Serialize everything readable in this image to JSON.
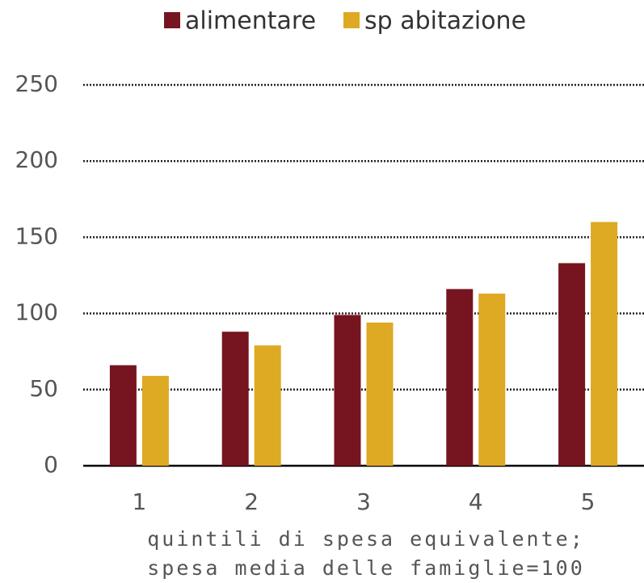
{
  "chart_data": {
    "type": "bar",
    "categories": [
      "1",
      "2",
      "3",
      "4",
      "5"
    ],
    "series": [
      {
        "name": "alimentare",
        "color": "#76151f",
        "values": [
          66,
          88,
          99,
          116,
          133
        ]
      },
      {
        "name": "sp abitazione",
        "color": "#dea923",
        "values": [
          59,
          79,
          94,
          113,
          160
        ]
      }
    ],
    "x_label": [
      "quintili di spesa equivalente;",
      "spesa media delle famiglie=100"
    ],
    "ylim": [
      0,
      250
    ],
    "yticks": [
      0,
      50,
      100,
      150,
      200,
      250
    ],
    "grid": true,
    "legend": "top"
  }
}
